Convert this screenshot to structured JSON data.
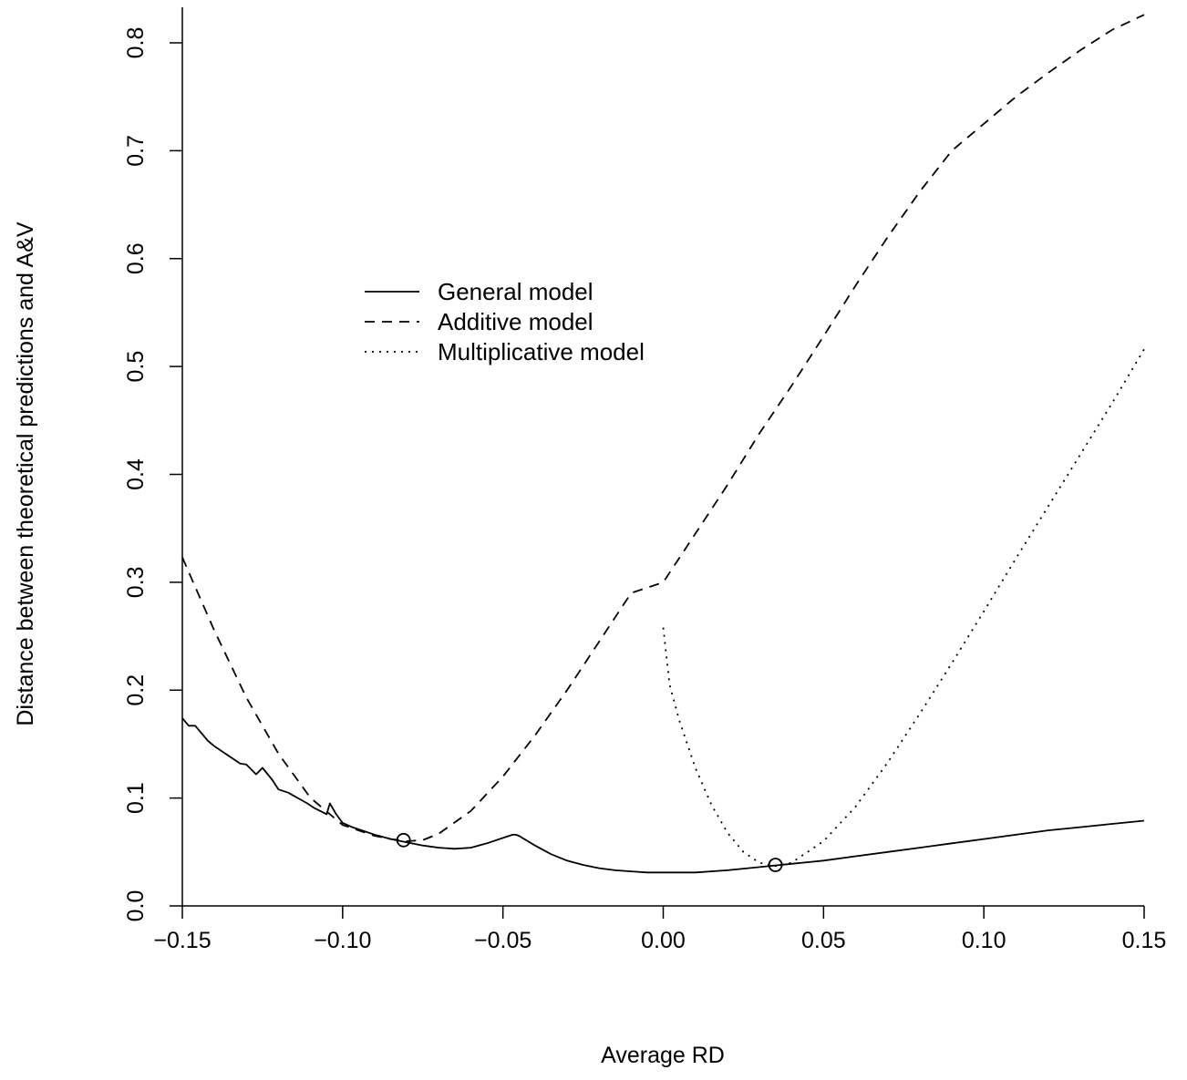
{
  "chart_data": {
    "type": "line",
    "title": "",
    "xlabel": "Average RD",
    "ylabel": "Distance between theoretical predictions and A&V",
    "xlim": [
      -0.15,
      0.15
    ],
    "ylim": [
      0.0,
      0.83
    ],
    "x_ticks": [
      -0.15,
      -0.1,
      -0.05,
      0.0,
      0.05,
      0.1,
      0.15
    ],
    "x_tick_labels": [
      "−0.15",
      "−0.10",
      "−0.05",
      "0.00",
      "0.05",
      "0.10",
      "0.15"
    ],
    "y_ticks": [
      0.0,
      0.1,
      0.2,
      0.3,
      0.4,
      0.5,
      0.6,
      0.7,
      0.8
    ],
    "y_tick_labels": [
      "0.0",
      "0.1",
      "0.2",
      "0.3",
      "0.4",
      "0.5",
      "0.6",
      "0.7",
      "0.8"
    ],
    "grid": false,
    "legend_position": "top-left",
    "series": [
      {
        "name": "General model",
        "style": "solid",
        "x": [
          -0.15,
          -0.148,
          -0.146,
          -0.144,
          -0.142,
          -0.14,
          -0.137,
          -0.134,
          -0.132,
          -0.13,
          -0.127,
          -0.125,
          -0.122,
          -0.12,
          -0.117,
          -0.114,
          -0.111,
          -0.109,
          -0.107,
          -0.105,
          -0.104,
          -0.102,
          -0.1,
          -0.097,
          -0.094,
          -0.09,
          -0.085,
          -0.08,
          -0.075,
          -0.07,
          -0.065,
          -0.06,
          -0.055,
          -0.05,
          -0.047,
          -0.046,
          -0.045,
          -0.04,
          -0.035,
          -0.03,
          -0.025,
          -0.02,
          -0.015,
          -0.01,
          -0.005,
          0.0,
          0.005,
          0.01,
          0.02,
          0.03,
          0.04,
          0.05,
          0.06,
          0.07,
          0.08,
          0.09,
          0.1,
          0.11,
          0.12,
          0.13,
          0.14,
          0.15
        ],
        "y": [
          0.174,
          0.167,
          0.167,
          0.16,
          0.153,
          0.148,
          0.142,
          0.136,
          0.132,
          0.131,
          0.122,
          0.128,
          0.117,
          0.108,
          0.105,
          0.1,
          0.095,
          0.091,
          0.088,
          0.085,
          0.095,
          0.085,
          0.077,
          0.073,
          0.07,
          0.066,
          0.062,
          0.059,
          0.056,
          0.054,
          0.053,
          0.054,
          0.058,
          0.063,
          0.066,
          0.066,
          0.065,
          0.056,
          0.048,
          0.042,
          0.038,
          0.035,
          0.033,
          0.032,
          0.031,
          0.031,
          0.031,
          0.031,
          0.033,
          0.036,
          0.039,
          0.042,
          0.046,
          0.05,
          0.054,
          0.058,
          0.062,
          0.066,
          0.07,
          0.073,
          0.076,
          0.079
        ]
      },
      {
        "name": "Additive model",
        "style": "dashed",
        "x": [
          -0.15,
          -0.14,
          -0.13,
          -0.12,
          -0.11,
          -0.1,
          -0.09,
          -0.085,
          -0.08,
          -0.075,
          -0.07,
          -0.06,
          -0.05,
          -0.04,
          -0.03,
          -0.02,
          -0.01,
          0.0,
          0.01,
          0.02,
          0.03,
          0.04,
          0.05,
          0.06,
          0.07,
          0.08,
          0.09,
          0.1,
          0.11,
          0.12,
          0.13,
          0.14,
          0.15
        ],
        "y": [
          0.323,
          0.255,
          0.193,
          0.141,
          0.1,
          0.075,
          0.065,
          0.062,
          0.06,
          0.061,
          0.067,
          0.088,
          0.12,
          0.158,
          0.2,
          0.245,
          0.29,
          0.3,
          0.345,
          0.39,
          0.438,
          0.482,
          0.528,
          0.575,
          0.62,
          0.662,
          0.7,
          0.725,
          0.75,
          0.772,
          0.793,
          0.812,
          0.826
        ]
      },
      {
        "name": "Multiplicative model",
        "style": "dotted",
        "x": [
          0.0,
          0.002,
          0.005,
          0.01,
          0.015,
          0.02,
          0.025,
          0.03,
          0.035,
          0.04,
          0.05,
          0.06,
          0.07,
          0.08,
          0.09,
          0.1,
          0.11,
          0.12,
          0.13,
          0.14,
          0.15
        ],
        "y": [
          0.258,
          0.205,
          0.172,
          0.128,
          0.094,
          0.068,
          0.05,
          0.04,
          0.037,
          0.04,
          0.06,
          0.092,
          0.133,
          0.178,
          0.225,
          0.273,
          0.322,
          0.37,
          0.418,
          0.466,
          0.516
        ]
      }
    ],
    "markers": [
      {
        "x": -0.081,
        "y": 0.061
      },
      {
        "x": 0.035,
        "y": 0.038
      }
    ]
  }
}
